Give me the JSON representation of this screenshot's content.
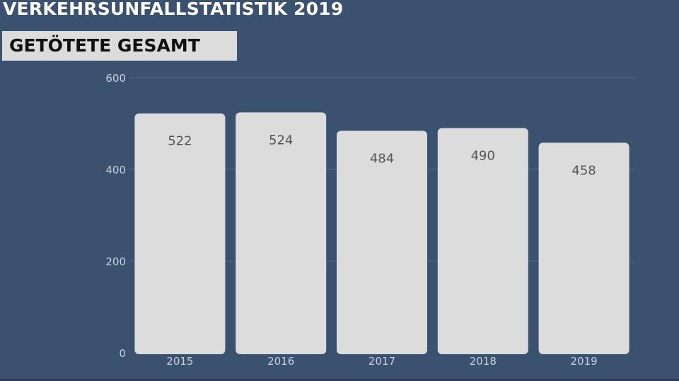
{
  "header": {
    "title": "VERKEHRSUNFALLSTATISTIK 2019",
    "subtitle": "GETÖTETE GESAMT"
  },
  "colors": {
    "background": "#3b5170",
    "bar": "#dcdcdc",
    "grid": "#4f6688",
    "tick_text": "#c9d1dc",
    "value_text": "#555555"
  },
  "chart_data": {
    "type": "bar",
    "categories": [
      "2015",
      "2016",
      "2017",
      "2018",
      "2019"
    ],
    "values": [
      522,
      524,
      484,
      490,
      458
    ],
    "data_labels": [
      "522",
      "524",
      "484",
      "490",
      "458"
    ],
    "yticks": [
      0,
      200,
      400,
      600
    ],
    "ylim": [
      0,
      600
    ],
    "grid": true,
    "legend": "none"
  }
}
